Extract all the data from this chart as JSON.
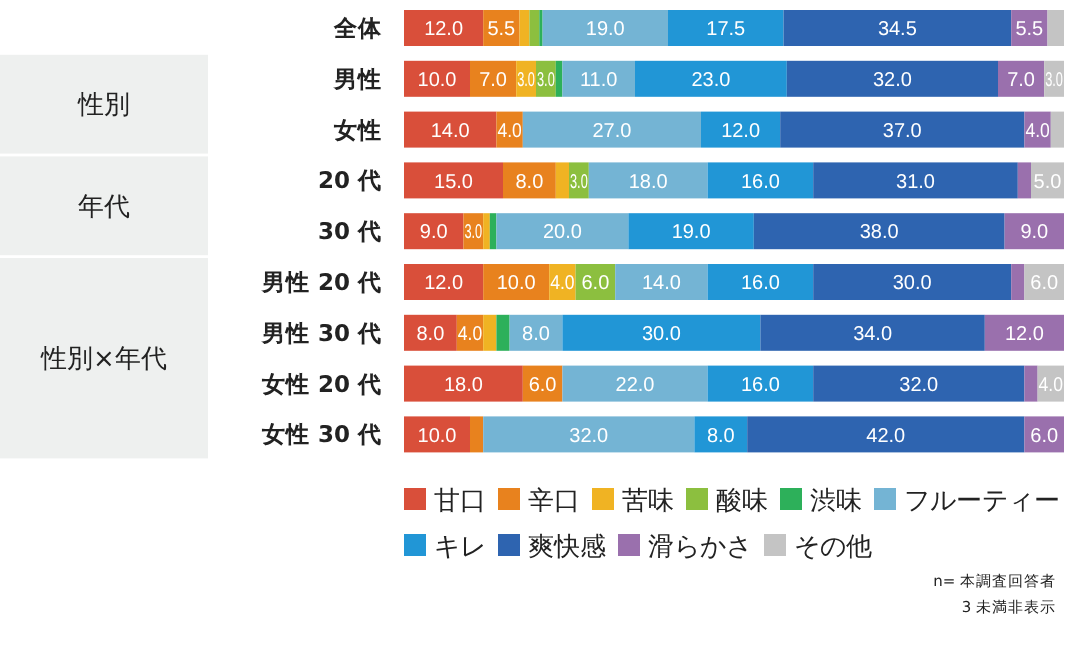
{
  "chart_data": {
    "type": "bar",
    "stacked": true,
    "orientation": "horizontal",
    "legend": "bottom",
    "categories": [
      "全体",
      "男性",
      "女性",
      "20 代",
      "30 代",
      "男性 20 代",
      "男性 30 代",
      "女性 20 代",
      "女性 30 代"
    ],
    "series": [
      {
        "name": "甘口",
        "color": "#d94f3a",
        "values": [
          12.0,
          10.0,
          14.0,
          15.0,
          9.0,
          12.0,
          8.0,
          18.0,
          10.0
        ],
        "value_labels": [
          "12.0",
          "10.0",
          "14.0",
          "15.0",
          "9.0",
          "12.0",
          "8.0",
          "18.0",
          "10.0"
        ]
      },
      {
        "name": "辛口",
        "color": "#e8821e",
        "values": [
          5.5,
          7.0,
          4.0,
          8.0,
          3.0,
          10.0,
          4.0,
          6.0,
          2.0
        ],
        "value_labels": [
          "5.5",
          "7.0",
          "4.0",
          "8.0",
          "3.0",
          "10.0",
          "4.0",
          "6.0",
          null
        ]
      },
      {
        "name": "苦味",
        "color": "#f0b323",
        "values": [
          1.5,
          3.0,
          0,
          2.0,
          1.0,
          4.0,
          2.0,
          0,
          0
        ],
        "value_labels": [
          null,
          "3.0",
          null,
          null,
          null,
          "4.0",
          null,
          null,
          null
        ]
      },
      {
        "name": "酸味",
        "color": "#8cbf3f",
        "values": [
          1.5,
          3.0,
          0,
          3.0,
          0,
          6.0,
          0,
          0,
          0
        ],
        "value_labels": [
          null,
          "3.0",
          null,
          "3.0",
          null,
          "6.0",
          null,
          null,
          null
        ]
      },
      {
        "name": "渋味",
        "color": "#2db05a",
        "values": [
          0.5,
          1.0,
          0,
          0,
          1.0,
          0,
          2.0,
          0,
          0
        ],
        "value_labels": [
          null,
          null,
          null,
          null,
          null,
          null,
          null,
          null,
          null
        ]
      },
      {
        "name": "フルーティー",
        "color": "#74b4d4",
        "values": [
          19.0,
          11.0,
          27.0,
          18.0,
          20.0,
          14.0,
          8.0,
          22.0,
          32.0
        ],
        "value_labels": [
          "19.0",
          "11.0",
          "27.0",
          "18.0",
          "20.0",
          "14.0",
          "8.0",
          "22.0",
          "32.0"
        ]
      },
      {
        "name": "キレ",
        "color": "#2196d6",
        "values": [
          17.5,
          23.0,
          12.0,
          16.0,
          19.0,
          16.0,
          30.0,
          16.0,
          8.0
        ],
        "value_labels": [
          "17.5",
          "23.0",
          "12.0",
          "16.0",
          "19.0",
          "16.0",
          "30.0",
          "16.0",
          "8.0"
        ]
      },
      {
        "name": "爽快感",
        "color": "#2e64b0",
        "values": [
          34.5,
          32.0,
          37.0,
          31.0,
          38.0,
          30.0,
          34.0,
          32.0,
          42.0
        ],
        "value_labels": [
          "34.5",
          "32.0",
          "37.0",
          "31.0",
          "38.0",
          "30.0",
          "34.0",
          "32.0",
          "42.0"
        ]
      },
      {
        "name": "滑らかさ",
        "color": "#9a70ad",
        "values": [
          5.5,
          7.0,
          4.0,
          2.0,
          9.0,
          2.0,
          12.0,
          2.0,
          6.0
        ],
        "value_labels": [
          "5.5",
          "7.0",
          "4.0",
          null,
          "9.0",
          null,
          "12.0",
          null,
          "6.0"
        ]
      },
      {
        "name": "その他",
        "color": "#c4c4c4",
        "values": [
          2.5,
          3.0,
          2.0,
          5.0,
          0,
          6.0,
          0,
          4.0,
          0
        ],
        "value_labels": [
          null,
          "3.0",
          null,
          "5.0",
          null,
          "6.0",
          null,
          "4.0",
          null
        ]
      }
    ],
    "annotations": [
      "性別",
      "年代",
      "性別×年代",
      "n= 本調査回答者",
      "3 未満非表示"
    ]
  }
}
